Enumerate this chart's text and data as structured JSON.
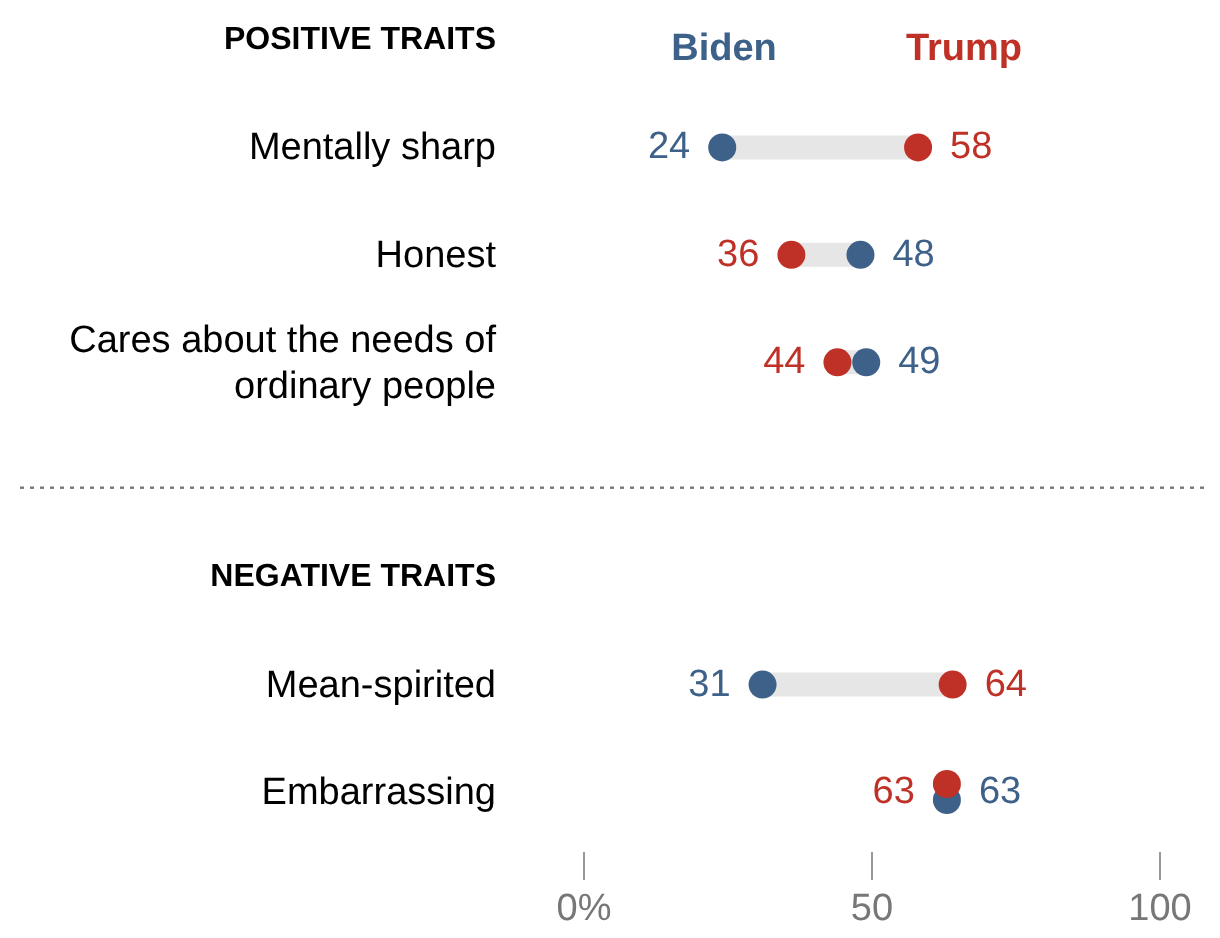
{
  "chart_data": {
    "type": "scatter",
    "orientation": "horizontal",
    "categories": [
      null,
      "Mentally sharp",
      "Honest",
      "Cares about the needs of ordinary people",
      null,
      null,
      "Mean-spirited",
      "Embarrassing"
    ],
    "series": [
      {
        "name": "Biden",
        "color": "#3d6188",
        "values": [
          null,
          24,
          48,
          49,
          null,
          null,
          31,
          63
        ]
      },
      {
        "name": "Trump",
        "color": "#bf3127",
        "values": [
          null,
          58,
          36,
          44,
          null,
          null,
          64,
          63
        ]
      }
    ],
    "annotations": [
      "POSITIVE TRAITS",
      "NEGATIVE TRAITS"
    ],
    "xlim": [
      0,
      100
    ],
    "xticks": [
      {
        "value": 0,
        "label": "0%"
      },
      50,
      100
    ],
    "data_labels": true,
    "legend": "top",
    "marker": "circle"
  }
}
